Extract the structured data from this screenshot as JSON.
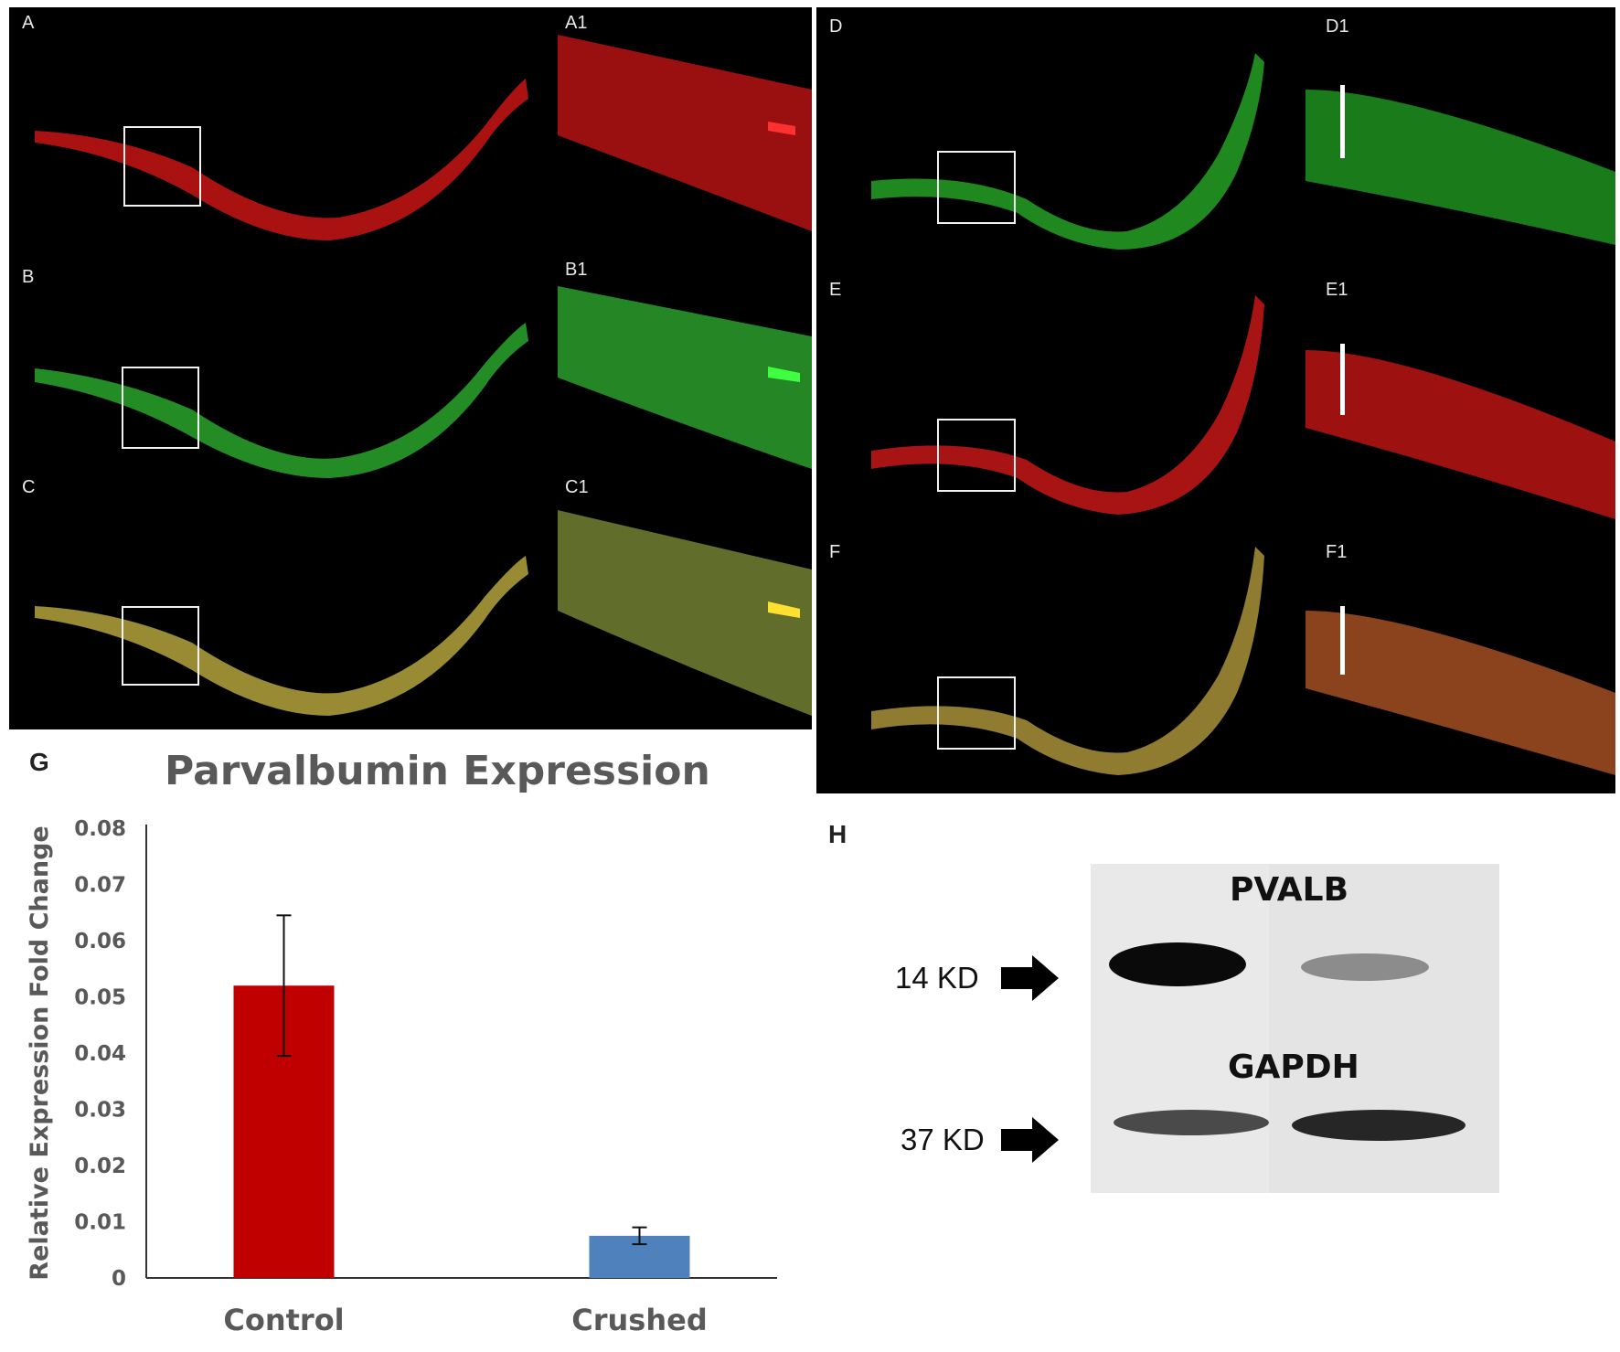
{
  "panels": {
    "A": "A",
    "A1": "A1",
    "B": "B",
    "B1": "B1",
    "C": "C",
    "C1": "C1",
    "D": "D",
    "D1": "D1",
    "E": "E",
    "E1": "E1",
    "F": "F",
    "F1": "F1",
    "G": "G",
    "H": "H"
  },
  "colors": {
    "red_channel": "#d81818",
    "green_channel": "#2bbf2b",
    "merge_channel": "#b8a436",
    "control_bar": "#c00000",
    "crushed_bar": "#4f81bd"
  },
  "chart_data": {
    "type": "bar",
    "title": "Parvalbumin Expression",
    "xlabel": "",
    "ylabel": "Relative Expression Fold Change",
    "categories": [
      "Control",
      "Crushed"
    ],
    "values": [
      0.052,
      0.0075
    ],
    "errors": [
      0.0125,
      0.0015
    ],
    "ylim": [
      0,
      0.08
    ],
    "yticks": [
      0,
      0.01,
      0.02,
      0.03,
      0.04,
      0.05,
      0.06,
      0.07,
      0.08
    ],
    "ytick_labels": [
      "0",
      "0.01",
      "0.02",
      "0.03",
      "0.04",
      "0.05",
      "0.06",
      "0.07",
      "0.08"
    ],
    "bar_colors": [
      "#c00000",
      "#4f81bd"
    ],
    "grid": false,
    "legend": "none"
  },
  "western_blot": {
    "band1_label": "PVALB",
    "band2_label": "GAPDH",
    "marker1": "14 KD",
    "marker2": "37 KD"
  }
}
